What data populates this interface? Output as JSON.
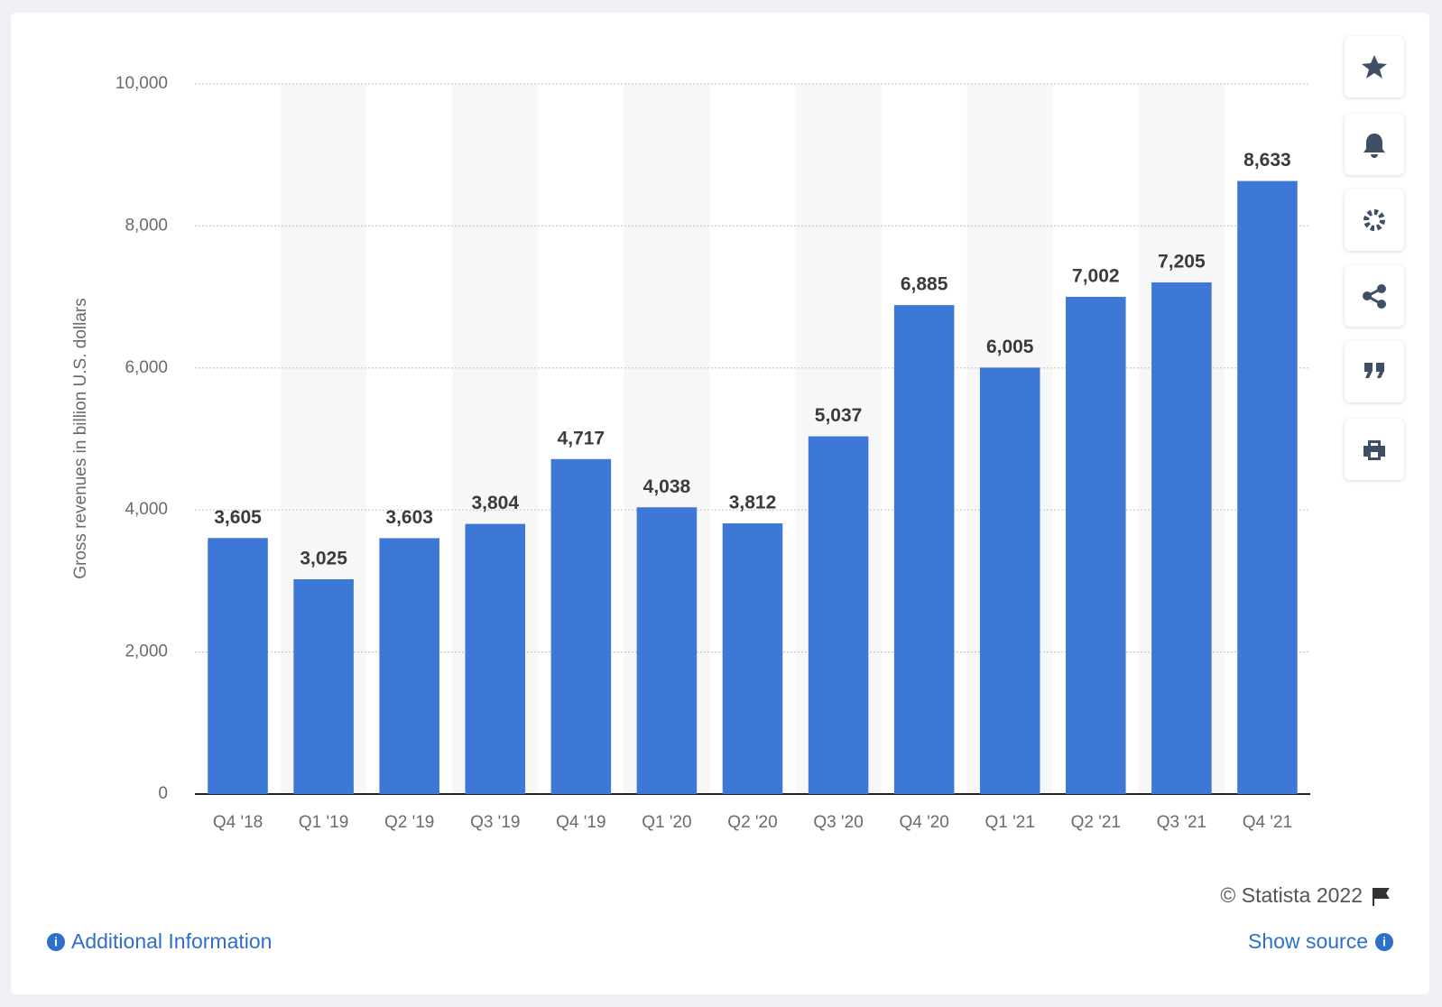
{
  "chart_data": {
    "type": "bar",
    "y_label": "Gross revenues in billion U.S. dollars",
    "categories": [
      "Q4 '18",
      "Q1 '19",
      "Q2 '19",
      "Q3 '19",
      "Q4 '19",
      "Q1 '20",
      "Q2 '20",
      "Q3 '20",
      "Q4 '20",
      "Q1 '21",
      "Q2 '21",
      "Q3 '21",
      "Q4 '21"
    ],
    "values": [
      3605,
      3025,
      3603,
      3804,
      4717,
      4038,
      3812,
      5037,
      6885,
      6005,
      7002,
      7205,
      8633
    ],
    "value_labels": [
      "3,605",
      "3,025",
      "3,603",
      "3,804",
      "4,717",
      "4,038",
      "3,812",
      "5,037",
      "6,885",
      "6,005",
      "7,002",
      "7,205",
      "8,633"
    ],
    "color": "#3d78d6",
    "ylim": [
      0,
      10000
    ],
    "yticks": [
      0,
      {
        "value": 2000,
        "label": "2,000"
      },
      {
        "value": 4000,
        "label": "4,000"
      },
      {
        "value": 6000,
        "label": "6,000"
      },
      {
        "value": 8000,
        "label": "8,000"
      },
      {
        "value": 10000,
        "label": "10,000"
      }
    ],
    "grid": true
  },
  "footer": {
    "copyright": "© Statista 2022",
    "additional_info": "Additional Information",
    "show_source": "Show source"
  }
}
